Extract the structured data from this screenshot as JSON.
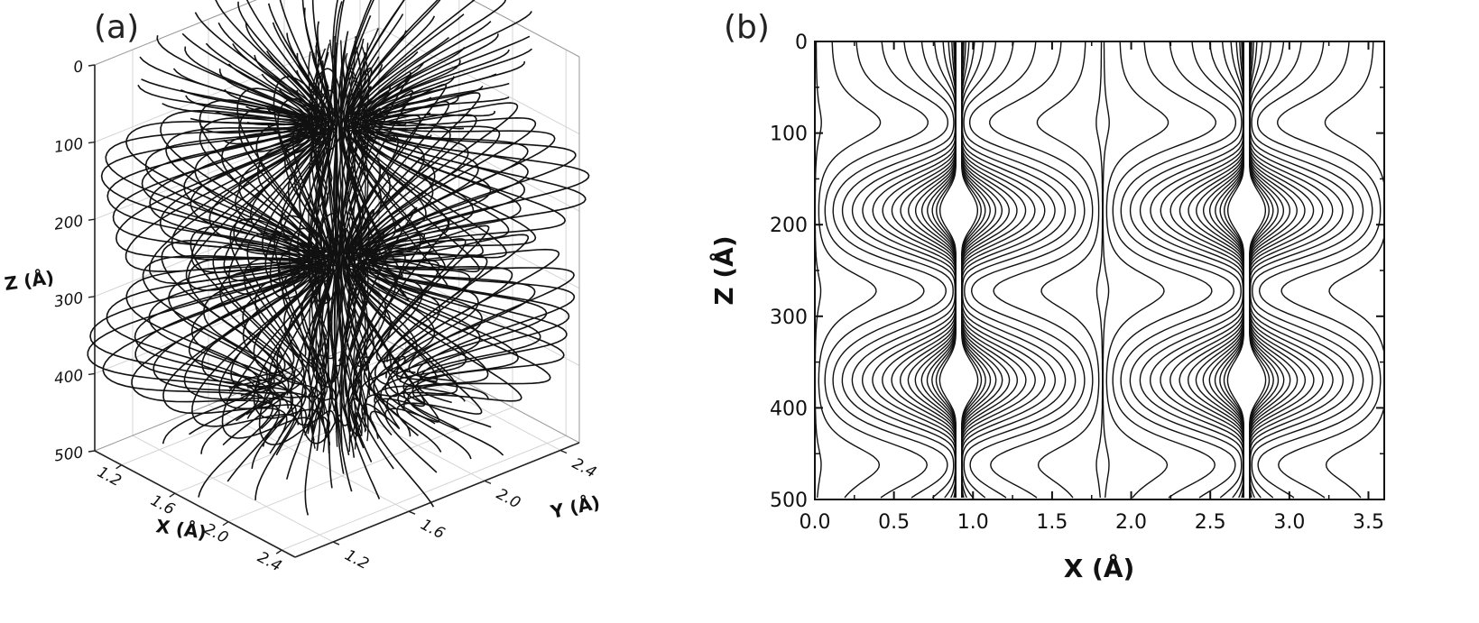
{
  "panels": {
    "a": {
      "label": "(a)"
    },
    "b": {
      "label": "(b)"
    }
  },
  "chart_data": [
    {
      "type": "streamline-3d",
      "panel": "(a)",
      "title": "",
      "xlabel": "X (Å)",
      "ylabel": "Y (Å)",
      "zlabel": "Z (Å)",
      "x_ticks": [
        "1.2",
        "1.6",
        "2.0",
        "2.4"
      ],
      "y_ticks": [
        "1.2",
        "1.6",
        "2.0",
        "2.4"
      ],
      "z_ticks": [
        "0",
        "100",
        "200",
        "300",
        "400",
        "500"
      ],
      "xlim": [
        1.0,
        2.5
      ],
      "ylim": [
        1.0,
        2.5
      ],
      "zlim": [
        0,
        500
      ],
      "z_inverted": true,
      "bulge_depths": [
        150,
        190,
        325,
        365
      ],
      "constriction_depths": [
        90,
        270,
        440
      ],
      "grid": true,
      "line_color": "#111111"
    },
    {
      "type": "contour",
      "panel": "(b)",
      "title": "",
      "xlabel": "X (Å)",
      "ylabel": "Z (Å)",
      "x_ticks": [
        "0.0",
        "0.5",
        "1.0",
        "1.5",
        "2.0",
        "2.5",
        "3.0",
        "3.5"
      ],
      "y_ticks": [
        "0",
        "100",
        "200",
        "300",
        "400",
        "500"
      ],
      "xlim": [
        0.0,
        3.6
      ],
      "ylim": [
        0,
        500
      ],
      "y_inverted": true,
      "field_centers_x": [
        0.0,
        1.82,
        3.64
      ],
      "period_x": 1.82,
      "bulge_depths": [
        185,
        370
      ],
      "constriction_depths": [
        90,
        270,
        460
      ],
      "grid": false,
      "line_color": "#111111"
    }
  ]
}
